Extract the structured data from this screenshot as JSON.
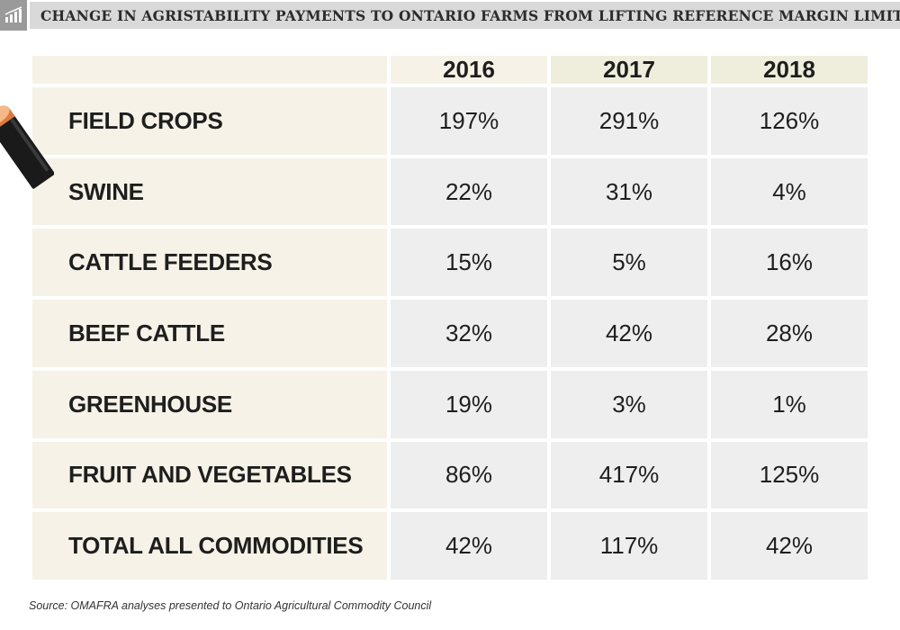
{
  "title": "CHANGE IN AGRISTABILITY PAYMENTS TO ONTARIO FARMS FROM LIFTING REFERENCE MARGIN LIMIT",
  "icons": {
    "title": "chart-icon",
    "decoration": "pencil-icon"
  },
  "colors": {
    "title_strip": "#d9d9d9",
    "icon_box": "#9a9a9a",
    "cell_label": "#f6f2e7",
    "cell_value": "#eeeeee"
  },
  "source": "Source: OMAFRA analyses presented to Ontario Agricultural Commodity Council",
  "chart_data": {
    "type": "table",
    "title": "CHANGE IN AGRISTABILITY PAYMENTS TO ONTARIO FARMS FROM LIFTING REFERENCE MARGIN LIMIT",
    "columns": [
      "2016",
      "2017",
      "2018"
    ],
    "rows": [
      {
        "label": "FIELD CROPS",
        "values": [
          "197%",
          "291%",
          "126%"
        ]
      },
      {
        "label": "SWINE",
        "values": [
          "22%",
          "31%",
          "4%"
        ]
      },
      {
        "label": "CATTLE FEEDERS",
        "values": [
          "15%",
          "5%",
          "16%"
        ]
      },
      {
        "label": "BEEF CATTLE",
        "values": [
          "32%",
          "42%",
          "28%"
        ]
      },
      {
        "label": "GREENHOUSE",
        "values": [
          "19%",
          "3%",
          "1%"
        ]
      },
      {
        "label": "FRUIT AND VEGETABLES",
        "values": [
          "86%",
          "417%",
          "125%"
        ]
      },
      {
        "label": "TOTAL ALL COMMODITIES",
        "values": [
          "42%",
          "117%",
          "42%"
        ]
      }
    ]
  }
}
